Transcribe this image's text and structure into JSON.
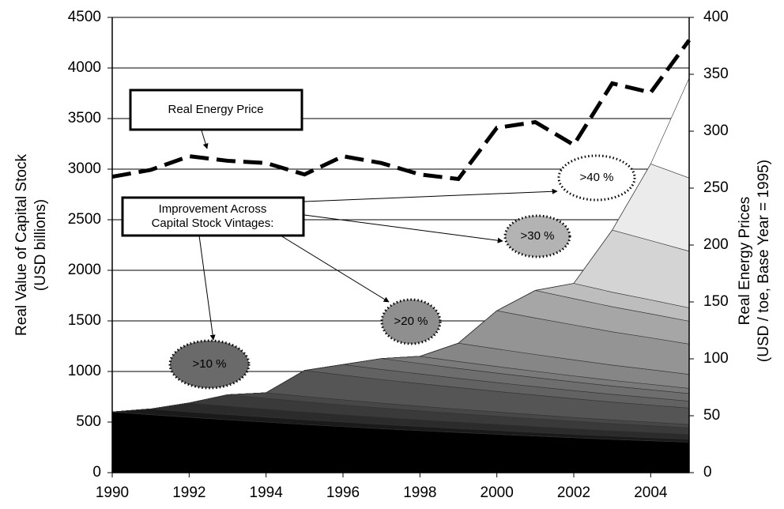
{
  "chart_data": {
    "type": "stacked-area",
    "x": [
      1990,
      1991,
      1992,
      1993,
      1994,
      1995,
      1996,
      1997,
      1998,
      1999,
      2000,
      2001,
      2002,
      2003,
      2004,
      2005
    ],
    "xlim": [
      1990,
      2005
    ],
    "xticks": [
      1990,
      1992,
      1994,
      1996,
      1998,
      2000,
      2002,
      2004
    ],
    "ylim": [
      0,
      4500
    ],
    "yticks": [
      0,
      500,
      1000,
      1500,
      2000,
      2500,
      3000,
      3500,
      4000,
      4500
    ],
    "y2lim": [
      0,
      400
    ],
    "y2ticks": [
      0,
      50,
      100,
      150,
      200,
      250,
      300,
      350,
      400
    ],
    "ylabel": [
      "Real Value of Capital Stock",
      "(USD billions)"
    ],
    "y2label": [
      "Real Energy Prices",
      "(USD / toe, Base Year = 1995)"
    ],
    "grid": true,
    "series": [
      {
        "color": "#000000",
        "values": [
          600,
          573,
          547,
          523,
          499,
          476,
          455,
          434,
          415,
          397,
          379,
          362,
          345,
          329,
          315,
          301
        ]
      },
      {
        "color": "#1a1a1a",
        "values": [
          0,
          57,
          54,
          52,
          50,
          47,
          45,
          43,
          41,
          39,
          38,
          36,
          34,
          33,
          31,
          30
        ]
      },
      {
        "color": "#2b2b2b",
        "values": [
          0,
          0,
          88,
          84,
          80,
          77,
          73,
          70,
          67,
          64,
          61,
          58,
          56,
          53,
          51,
          48
        ]
      },
      {
        "color": "#3a3a3a",
        "values": [
          0,
          0,
          0,
          111,
          106,
          101,
          97,
          92,
          88,
          84,
          80,
          77,
          73,
          70,
          67,
          64
        ]
      },
      {
        "color": "#474747",
        "values": [
          0,
          0,
          0,
          0,
          55,
          53,
          50,
          48,
          46,
          44,
          42,
          40,
          38,
          36,
          35,
          33
        ]
      },
      {
        "color": "#555555",
        "values": [
          0,
          0,
          0,
          0,
          0,
          256,
          244,
          233,
          223,
          213,
          203,
          194,
          185,
          177,
          169,
          162
        ]
      },
      {
        "color": "#626262",
        "values": [
          0,
          0,
          0,
          0,
          0,
          0,
          105,
          100,
          96,
          91,
          87,
          83,
          80,
          76,
          73,
          69
        ]
      },
      {
        "color": "#6e6e6e",
        "values": [
          0,
          0,
          0,
          0,
          0,
          0,
          0,
          108,
          103,
          98,
          94,
          90,
          86,
          82,
          78,
          75
        ]
      },
      {
        "color": "#7a7a7a",
        "values": [
          0,
          0,
          0,
          0,
          0,
          0,
          0,
          0,
          71,
          68,
          65,
          62,
          59,
          56,
          54,
          51
        ]
      },
      {
        "color": "#868686",
        "values": [
          0,
          0,
          0,
          0,
          0,
          0,
          0,
          0,
          0,
          182,
          174,
          166,
          159,
          151,
          145,
          138
        ]
      },
      {
        "color": "#949494",
        "values": [
          0,
          0,
          0,
          0,
          0,
          0,
          0,
          0,
          0,
          0,
          378,
          361,
          345,
          329,
          315,
          300
        ]
      },
      {
        "color": "#a6a6a6",
        "values": [
          0,
          0,
          0,
          0,
          0,
          0,
          0,
          0,
          0,
          0,
          0,
          272,
          260,
          248,
          237,
          226
        ]
      },
      {
        "color": "#bdbdbd",
        "values": [
          0,
          0,
          0,
          0,
          0,
          0,
          0,
          0,
          0,
          0,
          0,
          0,
          151,
          144,
          138,
          132
        ]
      },
      {
        "color": "#d4d4d4",
        "values": [
          0,
          0,
          0,
          0,
          0,
          0,
          0,
          0,
          0,
          0,
          0,
          0,
          0,
          614,
          586,
          560
        ]
      },
      {
        "color": "#ebebeb",
        "values": [
          0,
          0,
          0,
          0,
          0,
          0,
          0,
          0,
          0,
          0,
          0,
          0,
          0,
          0,
          758,
          724
        ]
      },
      {
        "color": "#ffffff",
        "values": [
          0,
          0,
          0,
          0,
          0,
          0,
          0,
          0,
          0,
          0,
          0,
          0,
          0,
          0,
          0,
          987
        ]
      },
      {
        "name": "Real Energy Price",
        "type": "line",
        "axis": "y2",
        "color": "#000000",
        "dashed": true,
        "values": [
          260,
          266,
          278,
          274,
          272,
          262,
          278,
          272,
          262,
          258,
          303,
          308,
          288,
          342,
          334,
          380
        ]
      }
    ],
    "annotations": [
      {
        "text": [
          "Improvement Across",
          "Capital Stock Vintages:"
        ]
      },
      {
        "text": ">10 %"
      },
      {
        "text": ">20 %"
      },
      {
        "text": ">30 %"
      },
      {
        "text": ">40 %"
      }
    ]
  }
}
